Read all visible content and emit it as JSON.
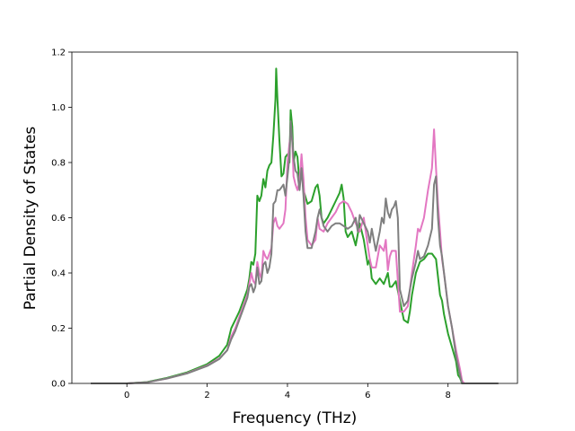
{
  "chart_data": {
    "type": "line",
    "title": "",
    "xlabel": "Frequency (THz)",
    "ylabel": "Partial Density of States",
    "xlim": [
      -1.37,
      9.73
    ],
    "ylim": [
      0.0,
      1.2
    ],
    "xticks": [
      0,
      2,
      4,
      6,
      8
    ],
    "yticks": [
      0.0,
      0.2,
      0.4,
      0.6,
      0.8,
      1.0,
      1.2
    ],
    "xtick_labels": [
      "0",
      "2",
      "4",
      "6",
      "8"
    ],
    "ytick_labels": [
      "0.0",
      "0.2",
      "0.4",
      "0.6",
      "0.8",
      "1.0",
      "1.2"
    ],
    "grid": false,
    "legend": "none",
    "series": [
      {
        "color": "#2ca02c",
        "points": [
          [
            -0.9,
            0.0
          ],
          [
            0.0,
            0.0
          ],
          [
            0.5,
            0.005
          ],
          [
            1.0,
            0.02
          ],
          [
            1.5,
            0.04
          ],
          [
            2.0,
            0.07
          ],
          [
            2.3,
            0.1
          ],
          [
            2.5,
            0.14
          ],
          [
            2.6,
            0.2
          ],
          [
            2.7,
            0.23
          ],
          [
            2.8,
            0.26
          ],
          [
            2.9,
            0.3
          ],
          [
            3.0,
            0.34
          ],
          [
            3.05,
            0.38
          ],
          [
            3.1,
            0.44
          ],
          [
            3.15,
            0.43
          ],
          [
            3.2,
            0.47
          ],
          [
            3.25,
            0.68
          ],
          [
            3.3,
            0.66
          ],
          [
            3.35,
            0.68
          ],
          [
            3.4,
            0.74
          ],
          [
            3.45,
            0.71
          ],
          [
            3.5,
            0.77
          ],
          [
            3.55,
            0.79
          ],
          [
            3.6,
            0.8
          ],
          [
            3.65,
            0.9
          ],
          [
            3.7,
            1.03
          ],
          [
            3.72,
            1.14
          ],
          [
            3.75,
            1.03
          ],
          [
            3.8,
            0.88
          ],
          [
            3.85,
            0.75
          ],
          [
            3.9,
            0.76
          ],
          [
            3.95,
            0.82
          ],
          [
            4.0,
            0.83
          ],
          [
            4.05,
            0.8
          ],
          [
            4.08,
            0.99
          ],
          [
            4.12,
            0.93
          ],
          [
            4.15,
            0.8
          ],
          [
            4.2,
            0.84
          ],
          [
            4.25,
            0.82
          ],
          [
            4.3,
            0.72
          ],
          [
            4.35,
            0.78
          ],
          [
            4.4,
            0.7
          ],
          [
            4.5,
            0.65
          ],
          [
            4.6,
            0.66
          ],
          [
            4.7,
            0.71
          ],
          [
            4.75,
            0.72
          ],
          [
            4.8,
            0.68
          ],
          [
            4.85,
            0.6
          ],
          [
            4.9,
            0.58
          ],
          [
            5.0,
            0.6
          ],
          [
            5.1,
            0.63
          ],
          [
            5.2,
            0.66
          ],
          [
            5.3,
            0.69
          ],
          [
            5.35,
            0.72
          ],
          [
            5.4,
            0.67
          ],
          [
            5.45,
            0.55
          ],
          [
            5.5,
            0.53
          ],
          [
            5.6,
            0.55
          ],
          [
            5.7,
            0.5
          ],
          [
            5.8,
            0.58
          ],
          [
            5.9,
            0.52
          ],
          [
            6.0,
            0.43
          ],
          [
            6.05,
            0.45
          ],
          [
            6.1,
            0.38
          ],
          [
            6.2,
            0.36
          ],
          [
            6.3,
            0.38
          ],
          [
            6.4,
            0.36
          ],
          [
            6.5,
            0.4
          ],
          [
            6.55,
            0.35
          ],
          [
            6.6,
            0.35
          ],
          [
            6.7,
            0.37
          ],
          [
            6.8,
            0.3
          ],
          [
            6.9,
            0.23
          ],
          [
            7.0,
            0.22
          ],
          [
            7.05,
            0.26
          ],
          [
            7.1,
            0.32
          ],
          [
            7.2,
            0.4
          ],
          [
            7.3,
            0.44
          ],
          [
            7.4,
            0.45
          ],
          [
            7.5,
            0.47
          ],
          [
            7.6,
            0.47
          ],
          [
            7.7,
            0.45
          ],
          [
            7.8,
            0.32
          ],
          [
            7.85,
            0.3
          ],
          [
            7.9,
            0.25
          ],
          [
            8.0,
            0.18
          ],
          [
            8.1,
            0.13
          ],
          [
            8.2,
            0.08
          ],
          [
            8.25,
            0.03
          ],
          [
            8.3,
            0.02
          ],
          [
            8.35,
            0.0
          ],
          [
            9.25,
            0.0
          ]
        ]
      },
      {
        "color": "#e377c2",
        "points": [
          [
            -0.9,
            0.0
          ],
          [
            0.0,
            0.0
          ],
          [
            0.5,
            0.004
          ],
          [
            1.0,
            0.018
          ],
          [
            1.5,
            0.037
          ],
          [
            2.0,
            0.065
          ],
          [
            2.3,
            0.09
          ],
          [
            2.5,
            0.12
          ],
          [
            2.6,
            0.17
          ],
          [
            2.7,
            0.2
          ],
          [
            2.8,
            0.24
          ],
          [
            2.9,
            0.28
          ],
          [
            3.0,
            0.32
          ],
          [
            3.05,
            0.36
          ],
          [
            3.1,
            0.4
          ],
          [
            3.15,
            0.37
          ],
          [
            3.2,
            0.36
          ],
          [
            3.25,
            0.44
          ],
          [
            3.3,
            0.4
          ],
          [
            3.35,
            0.38
          ],
          [
            3.4,
            0.48
          ],
          [
            3.45,
            0.46
          ],
          [
            3.5,
            0.45
          ],
          [
            3.55,
            0.47
          ],
          [
            3.6,
            0.49
          ],
          [
            3.65,
            0.58
          ],
          [
            3.7,
            0.6
          ],
          [
            3.75,
            0.57
          ],
          [
            3.8,
            0.56
          ],
          [
            3.85,
            0.57
          ],
          [
            3.9,
            0.58
          ],
          [
            3.95,
            0.63
          ],
          [
            4.0,
            0.8
          ],
          [
            4.05,
            0.87
          ],
          [
            4.08,
            0.9
          ],
          [
            4.12,
            0.88
          ],
          [
            4.15,
            0.75
          ],
          [
            4.2,
            0.72
          ],
          [
            4.25,
            0.7
          ],
          [
            4.3,
            0.73
          ],
          [
            4.35,
            0.83
          ],
          [
            4.4,
            0.74
          ],
          [
            4.45,
            0.6
          ],
          [
            4.5,
            0.52
          ],
          [
            4.6,
            0.5
          ],
          [
            4.7,
            0.52
          ],
          [
            4.75,
            0.6
          ],
          [
            4.8,
            0.56
          ],
          [
            4.9,
            0.55
          ],
          [
            5.0,
            0.58
          ],
          [
            5.1,
            0.6
          ],
          [
            5.2,
            0.62
          ],
          [
            5.3,
            0.65
          ],
          [
            5.4,
            0.66
          ],
          [
            5.5,
            0.65
          ],
          [
            5.6,
            0.62
          ],
          [
            5.7,
            0.58
          ],
          [
            5.8,
            0.55
          ],
          [
            5.9,
            0.6
          ],
          [
            6.0,
            0.5
          ],
          [
            6.05,
            0.45
          ],
          [
            6.1,
            0.42
          ],
          [
            6.2,
            0.42
          ],
          [
            6.3,
            0.5
          ],
          [
            6.4,
            0.48
          ],
          [
            6.45,
            0.52
          ],
          [
            6.5,
            0.41
          ],
          [
            6.55,
            0.46
          ],
          [
            6.6,
            0.48
          ],
          [
            6.7,
            0.48
          ],
          [
            6.8,
            0.26
          ],
          [
            6.9,
            0.26
          ],
          [
            7.0,
            0.28
          ],
          [
            7.1,
            0.4
          ],
          [
            7.2,
            0.5
          ],
          [
            7.25,
            0.56
          ],
          [
            7.3,
            0.55
          ],
          [
            7.4,
            0.6
          ],
          [
            7.5,
            0.7
          ],
          [
            7.6,
            0.78
          ],
          [
            7.65,
            0.92
          ],
          [
            7.7,
            0.78
          ],
          [
            7.75,
            0.65
          ],
          [
            7.8,
            0.55
          ],
          [
            7.85,
            0.45
          ],
          [
            7.9,
            0.4
          ],
          [
            8.0,
            0.28
          ],
          [
            8.1,
            0.2
          ],
          [
            8.2,
            0.12
          ],
          [
            8.3,
            0.05
          ],
          [
            8.35,
            0.01
          ],
          [
            8.4,
            0.0
          ],
          [
            9.25,
            0.0
          ]
        ]
      },
      {
        "color": "#7f7f7f",
        "points": [
          [
            -0.9,
            0.0
          ],
          [
            0.0,
            0.0
          ],
          [
            0.5,
            0.004
          ],
          [
            1.0,
            0.018
          ],
          [
            1.5,
            0.036
          ],
          [
            2.0,
            0.063
          ],
          [
            2.3,
            0.088
          ],
          [
            2.5,
            0.12
          ],
          [
            2.6,
            0.16
          ],
          [
            2.7,
            0.19
          ],
          [
            2.8,
            0.23
          ],
          [
            2.9,
            0.27
          ],
          [
            3.0,
            0.31
          ],
          [
            3.05,
            0.35
          ],
          [
            3.1,
            0.36
          ],
          [
            3.15,
            0.33
          ],
          [
            3.2,
            0.35
          ],
          [
            3.25,
            0.42
          ],
          [
            3.3,
            0.36
          ],
          [
            3.35,
            0.37
          ],
          [
            3.4,
            0.43
          ],
          [
            3.45,
            0.44
          ],
          [
            3.5,
            0.4
          ],
          [
            3.55,
            0.42
          ],
          [
            3.6,
            0.47
          ],
          [
            3.65,
            0.65
          ],
          [
            3.7,
            0.66
          ],
          [
            3.75,
            0.7
          ],
          [
            3.8,
            0.7
          ],
          [
            3.85,
            0.71
          ],
          [
            3.9,
            0.72
          ],
          [
            3.95,
            0.68
          ],
          [
            4.0,
            0.75
          ],
          [
            4.05,
            0.82
          ],
          [
            4.08,
            0.95
          ],
          [
            4.12,
            0.88
          ],
          [
            4.15,
            0.82
          ],
          [
            4.2,
            0.77
          ],
          [
            4.25,
            0.76
          ],
          [
            4.3,
            0.7
          ],
          [
            4.35,
            0.78
          ],
          [
            4.4,
            0.68
          ],
          [
            4.45,
            0.55
          ],
          [
            4.5,
            0.49
          ],
          [
            4.6,
            0.49
          ],
          [
            4.7,
            0.55
          ],
          [
            4.75,
            0.6
          ],
          [
            4.8,
            0.63
          ],
          [
            4.85,
            0.6
          ],
          [
            4.9,
            0.57
          ],
          [
            5.0,
            0.55
          ],
          [
            5.1,
            0.57
          ],
          [
            5.2,
            0.58
          ],
          [
            5.3,
            0.58
          ],
          [
            5.4,
            0.57
          ],
          [
            5.5,
            0.56
          ],
          [
            5.6,
            0.57
          ],
          [
            5.7,
            0.6
          ],
          [
            5.75,
            0.55
          ],
          [
            5.8,
            0.61
          ],
          [
            5.9,
            0.58
          ],
          [
            6.0,
            0.55
          ],
          [
            6.05,
            0.51
          ],
          [
            6.1,
            0.56
          ],
          [
            6.2,
            0.48
          ],
          [
            6.3,
            0.55
          ],
          [
            6.35,
            0.6
          ],
          [
            6.4,
            0.58
          ],
          [
            6.45,
            0.67
          ],
          [
            6.5,
            0.62
          ],
          [
            6.55,
            0.6
          ],
          [
            6.6,
            0.63
          ],
          [
            6.65,
            0.64
          ],
          [
            6.7,
            0.66
          ],
          [
            6.75,
            0.6
          ],
          [
            6.8,
            0.34
          ],
          [
            6.9,
            0.28
          ],
          [
            7.0,
            0.3
          ],
          [
            7.1,
            0.38
          ],
          [
            7.2,
            0.44
          ],
          [
            7.25,
            0.48
          ],
          [
            7.3,
            0.45
          ],
          [
            7.4,
            0.46
          ],
          [
            7.5,
            0.5
          ],
          [
            7.6,
            0.56
          ],
          [
            7.65,
            0.72
          ],
          [
            7.7,
            0.75
          ],
          [
            7.75,
            0.6
          ],
          [
            7.8,
            0.5
          ],
          [
            7.85,
            0.46
          ],
          [
            7.9,
            0.4
          ],
          [
            8.0,
            0.28
          ],
          [
            8.1,
            0.2
          ],
          [
            8.2,
            0.1
          ],
          [
            8.3,
            0.03
          ],
          [
            8.35,
            0.0
          ],
          [
            9.25,
            0.0
          ]
        ]
      }
    ]
  }
}
